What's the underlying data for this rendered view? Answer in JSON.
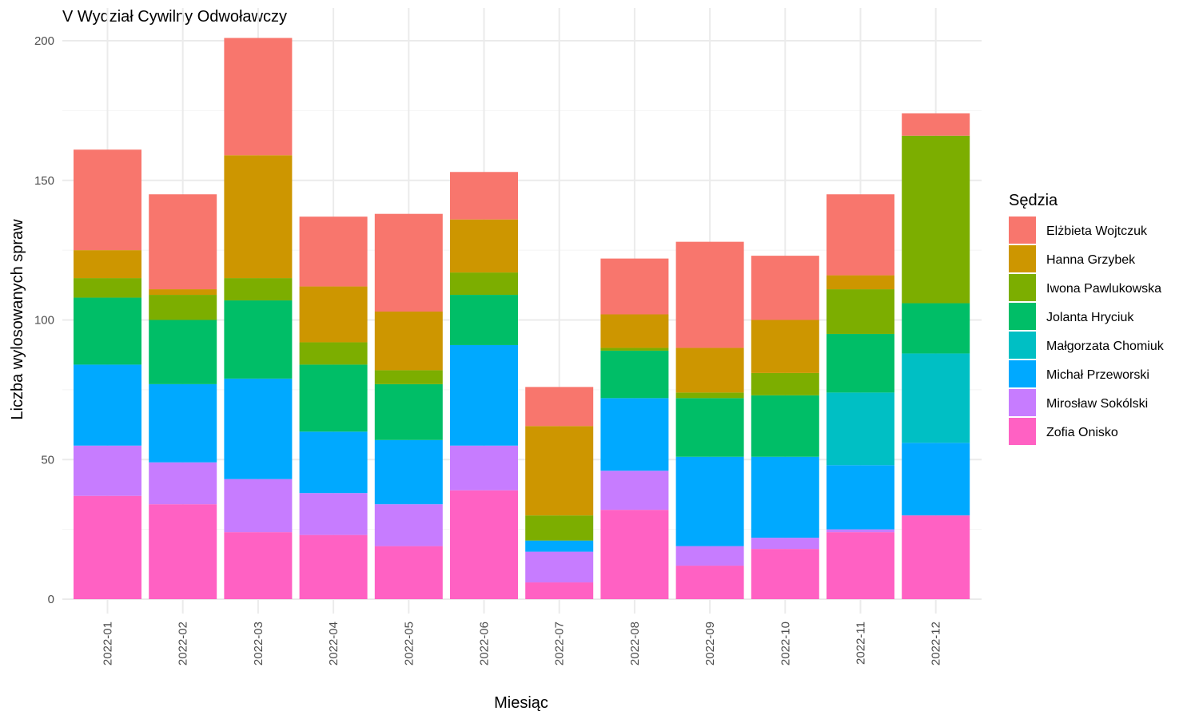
{
  "chart_data": {
    "type": "bar",
    "stacked": true,
    "title": "V Wydział Cywilny Odwoławczy",
    "xlabel": "Miesiąc",
    "ylabel": "Liczba wylosowanych spraw",
    "ylim": [
      0,
      210
    ],
    "yticks": [
      0,
      50,
      100,
      150,
      200
    ],
    "grid": true,
    "legend_title": "Sędzia",
    "legend_position": "right",
    "categories": [
      "2022-01",
      "2022-02",
      "2022-03",
      "2022-04",
      "2022-05",
      "2022-06",
      "2022-07",
      "2022-08",
      "2022-09",
      "2022-10",
      "2022-11",
      "2022-12"
    ],
    "series": [
      {
        "name": "Zofia Onisko",
        "color": "#FF61C3",
        "values": [
          37,
          34,
          24,
          23,
          19,
          39,
          6,
          32,
          12,
          18,
          24,
          30
        ]
      },
      {
        "name": "Mirosław Sokólski",
        "color": "#C77CFF",
        "values": [
          18,
          15,
          19,
          15,
          15,
          16,
          11,
          14,
          7,
          4,
          1,
          0
        ]
      },
      {
        "name": "Michał Przeworski",
        "color": "#00A9FF",
        "values": [
          29,
          28,
          36,
          22,
          23,
          36,
          4,
          26,
          32,
          29,
          23,
          26
        ]
      },
      {
        "name": "Małgorzata Chomiuk",
        "color": "#00BFC4",
        "values": [
          0,
          0,
          0,
          0,
          0,
          0,
          0,
          0,
          0,
          0,
          26,
          32
        ]
      },
      {
        "name": "Jolanta Hryciuk",
        "color": "#00BE67",
        "values": [
          24,
          23,
          28,
          24,
          20,
          18,
          0,
          17,
          21,
          22,
          21,
          18
        ]
      },
      {
        "name": "Iwona Pawlukowska",
        "color": "#7CAE00",
        "values": [
          7,
          9,
          8,
          8,
          5,
          8,
          9,
          1,
          2,
          8,
          16,
          60
        ]
      },
      {
        "name": "Hanna Grzybek",
        "color": "#CD9600",
        "values": [
          10,
          2,
          44,
          20,
          21,
          19,
          32,
          12,
          16,
          19,
          5,
          0
        ]
      },
      {
        "name": "Elżbieta Wojtczuk",
        "color": "#F8766D",
        "values": [
          36,
          34,
          42,
          25,
          35,
          17,
          14,
          20,
          38,
          23,
          29,
          8
        ]
      }
    ],
    "legend_order": [
      "Elżbieta Wojtczuk",
      "Hanna Grzybek",
      "Iwona Pawlukowska",
      "Jolanta Hryciuk",
      "Małgorzata Chomiuk",
      "Michał Przeworski",
      "Mirosław Sokólski",
      "Zofia Onisko"
    ]
  }
}
